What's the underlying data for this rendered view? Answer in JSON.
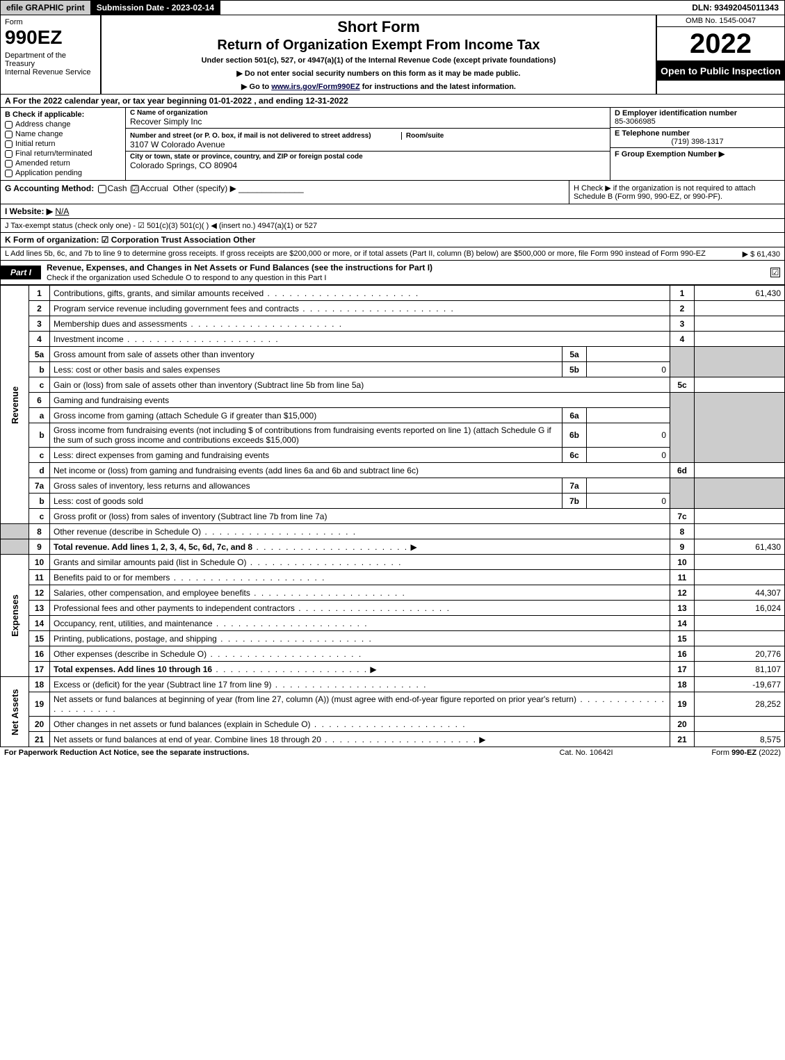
{
  "topbar": {
    "efile": "efile GRAPHIC print",
    "subdate": "Submission Date - 2023-02-14",
    "dln": "DLN: 93492045011343"
  },
  "header": {
    "formword": "Form",
    "formno": "990EZ",
    "dept": "Department of the Treasury\nInternal Revenue Service",
    "shortform": "Short Form",
    "maintitle": "Return of Organization Exempt From Income Tax",
    "undersec": "Under section 501(c), 527, or 4947(a)(1) of the Internal Revenue Code (except private foundations)",
    "instr1": "▶ Do not enter social security numbers on this form as it may be made public.",
    "instr2_pre": "▶ Go to ",
    "instr2_link": "www.irs.gov/Form990EZ",
    "instr2_post": " for instructions and the latest information.",
    "omb": "OMB No. 1545-0047",
    "year": "2022",
    "openpub": "Open to Public Inspection"
  },
  "a": "A  For the 2022 calendar year, or tax year beginning 01-01-2022 , and ending 12-31-2022",
  "b": {
    "label": "B  Check if applicable:",
    "items": [
      "Address change",
      "Name change",
      "Initial return",
      "Final return/terminated",
      "Amended return",
      "Application pending"
    ]
  },
  "c": {
    "name_label": "C Name of organization",
    "name": "Recover Simply Inc",
    "street_label": "Number and street (or P. O. box, if mail is not delivered to street address)",
    "room_label": "Room/suite",
    "street": "3107 W Colorado Avenue",
    "city_label": "City or town, state or province, country, and ZIP or foreign postal code",
    "city": "Colorado Springs, CO  80904"
  },
  "d": {
    "label": "D Employer identification number",
    "val": "85-3066985"
  },
  "e": {
    "label": "E Telephone number",
    "val": "(719) 398-1317"
  },
  "f": {
    "label": "F Group Exemption Number  ▶",
    "val": ""
  },
  "g": {
    "label": "G Accounting Method:",
    "cash": "Cash",
    "accrual": "Accrual",
    "other": "Other (specify) ▶"
  },
  "h": "H  Check ▶      if the organization is not required to attach Schedule B (Form 990, 990-EZ, or 990-PF).",
  "i_label": "I Website: ▶",
  "i_val": "N/A",
  "j": "J Tax-exempt status (check only one) - ☑ 501(c)(3)   501(c)(  ) ◀ (insert no.)   4947(a)(1) or   527",
  "k": "K Form of organization:  ☑ Corporation   Trust   Association   Other",
  "l_text": "L Add lines 5b, 6c, and 7b to line 9 to determine gross receipts. If gross receipts are $200,000 or more, or if total assets (Part II, column (B) below) are $500,000 or more, file Form 990 instead of Form 990-EZ",
  "l_val": "▶ $ 61,430",
  "part1": {
    "tab": "Part I",
    "title": "Revenue, Expenses, and Changes in Net Assets or Fund Balances (see the instructions for Part I)",
    "subtitle": "Check if the organization used Schedule O to respond to any question in this Part I",
    "checked": "☑"
  },
  "side": {
    "rev": "Revenue",
    "exp": "Expenses",
    "net": "Net Assets"
  },
  "lines": {
    "l1": {
      "n": "1",
      "d": "Contributions, gifts, grants, and similar amounts received",
      "num": "1",
      "v": "61,430"
    },
    "l2": {
      "n": "2",
      "d": "Program service revenue including government fees and contracts",
      "num": "2",
      "v": ""
    },
    "l3": {
      "n": "3",
      "d": "Membership dues and assessments",
      "num": "3",
      "v": ""
    },
    "l4": {
      "n": "4",
      "d": "Investment income",
      "num": "4",
      "v": ""
    },
    "l5a": {
      "n": "5a",
      "d": "Gross amount from sale of assets other than inventory",
      "mn": "5a",
      "mv": ""
    },
    "l5b": {
      "n": "b",
      "d": "Less: cost or other basis and sales expenses",
      "mn": "5b",
      "mv": "0"
    },
    "l5c": {
      "n": "c",
      "d": "Gain or (loss) from sale of assets other than inventory (Subtract line 5b from line 5a)",
      "num": "5c",
      "v": ""
    },
    "l6": {
      "n": "6",
      "d": "Gaming and fundraising events"
    },
    "l6a": {
      "n": "a",
      "d": "Gross income from gaming (attach Schedule G if greater than $15,000)",
      "mn": "6a",
      "mv": ""
    },
    "l6b": {
      "n": "b",
      "d": "Gross income from fundraising events (not including $               of contributions from fundraising events reported on line 1) (attach Schedule G if the sum of such gross income and contributions exceeds $15,000)",
      "mn": "6b",
      "mv": "0"
    },
    "l6c": {
      "n": "c",
      "d": "Less: direct expenses from gaming and fundraising events",
      "mn": "6c",
      "mv": "0"
    },
    "l6d": {
      "n": "d",
      "d": "Net income or (loss) from gaming and fundraising events (add lines 6a and 6b and subtract line 6c)",
      "num": "6d",
      "v": ""
    },
    "l7a": {
      "n": "7a",
      "d": "Gross sales of inventory, less returns and allowances",
      "mn": "7a",
      "mv": ""
    },
    "l7b": {
      "n": "b",
      "d": "Less: cost of goods sold",
      "mn": "7b",
      "mv": "0"
    },
    "l7c": {
      "n": "c",
      "d": "Gross profit or (loss) from sales of inventory (Subtract line 7b from line 7a)",
      "num": "7c",
      "v": ""
    },
    "l8": {
      "n": "8",
      "d": "Other revenue (describe in Schedule O)",
      "num": "8",
      "v": ""
    },
    "l9": {
      "n": "9",
      "d": "Total revenue. Add lines 1, 2, 3, 4, 5c, 6d, 7c, and 8",
      "num": "9",
      "v": "61,430",
      "arrow": true,
      "bold": true
    },
    "l10": {
      "n": "10",
      "d": "Grants and similar amounts paid (list in Schedule O)",
      "num": "10",
      "v": ""
    },
    "l11": {
      "n": "11",
      "d": "Benefits paid to or for members",
      "num": "11",
      "v": ""
    },
    "l12": {
      "n": "12",
      "d": "Salaries, other compensation, and employee benefits",
      "num": "12",
      "v": "44,307"
    },
    "l13": {
      "n": "13",
      "d": "Professional fees and other payments to independent contractors",
      "num": "13",
      "v": "16,024"
    },
    "l14": {
      "n": "14",
      "d": "Occupancy, rent, utilities, and maintenance",
      "num": "14",
      "v": ""
    },
    "l15": {
      "n": "15",
      "d": "Printing, publications, postage, and shipping",
      "num": "15",
      "v": ""
    },
    "l16": {
      "n": "16",
      "d": "Other expenses (describe in Schedule O)",
      "num": "16",
      "v": "20,776"
    },
    "l17": {
      "n": "17",
      "d": "Total expenses. Add lines 10 through 16",
      "num": "17",
      "v": "81,107",
      "arrow": true,
      "bold": true
    },
    "l18": {
      "n": "18",
      "d": "Excess or (deficit) for the year (Subtract line 17 from line 9)",
      "num": "18",
      "v": "-19,677"
    },
    "l19": {
      "n": "19",
      "d": "Net assets or fund balances at beginning of year (from line 27, column (A)) (must agree with end-of-year figure reported on prior year's return)",
      "num": "19",
      "v": "28,252"
    },
    "l20": {
      "n": "20",
      "d": "Other changes in net assets or fund balances (explain in Schedule O)",
      "num": "20",
      "v": ""
    },
    "l21": {
      "n": "21",
      "d": "Net assets or fund balances at end of year. Combine lines 18 through 20",
      "num": "21",
      "v": "8,575",
      "arrow": true
    }
  },
  "footer": {
    "left": "For Paperwork Reduction Act Notice, see the separate instructions.",
    "mid": "Cat. No. 10642I",
    "right": "Form 990-EZ (2022)"
  }
}
